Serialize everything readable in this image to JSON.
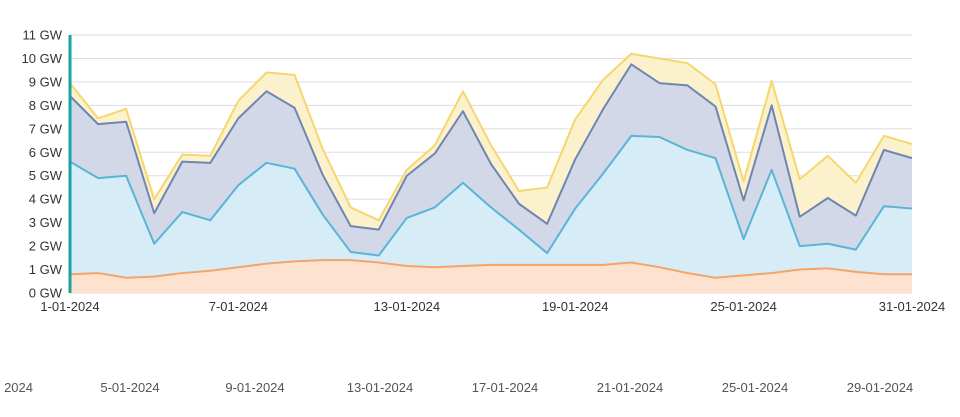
{
  "chart_data": {
    "type": "area",
    "x_labels": [
      "1-01-2024",
      "7-01-2024",
      "13-01-2024",
      "19-01-2024",
      "25-01-2024",
      "31-01-2024"
    ],
    "y_ticks": [
      "0 GW",
      "1 GW",
      "2 GW",
      "3 GW",
      "4 GW",
      "5 GW",
      "6 GW",
      "7 GW",
      "8 GW",
      "9 GW",
      "10 GW",
      "11 GW"
    ],
    "ylim": [
      0,
      11
    ],
    "xlim": [
      1,
      31
    ],
    "grid": true,
    "x": [
      1,
      2,
      3,
      4,
      5,
      6,
      7,
      8,
      9,
      10,
      11,
      12,
      13,
      14,
      15,
      16,
      17,
      18,
      19,
      20,
      21,
      22,
      23,
      24,
      25,
      26,
      27,
      28,
      29,
      30,
      31
    ],
    "series": [
      {
        "color": "#f4a46a",
        "fill": "#fde3cf",
        "values": [
          0.8,
          0.85,
          0.65,
          0.7,
          0.85,
          0.95,
          1.1,
          1.25,
          1.35,
          1.4,
          1.4,
          1.3,
          1.15,
          1.1,
          1.15,
          1.2,
          1.2,
          1.2,
          1.2,
          1.2,
          1.3,
          1.1,
          0.85,
          0.65,
          0.75,
          0.85,
          1.0,
          1.05,
          0.9,
          0.8,
          0.8
        ]
      },
      {
        "color": "#5ab4d6",
        "fill": "#d6ecf6",
        "values": [
          5.6,
          4.9,
          5.0,
          2.1,
          3.45,
          3.1,
          4.6,
          5.55,
          5.3,
          3.35,
          1.75,
          1.6,
          3.2,
          3.65,
          4.7,
          3.65,
          2.7,
          1.7,
          3.6,
          5.1,
          6.7,
          6.65,
          6.1,
          5.75,
          2.3,
          5.25,
          2.0,
          2.1,
          1.85,
          3.7,
          3.6
        ]
      },
      {
        "color": "#6f86b0",
        "fill": "#d3d8e8",
        "values": [
          8.4,
          7.2,
          7.3,
          3.4,
          5.6,
          5.55,
          7.45,
          8.6,
          7.9,
          5.05,
          2.85,
          2.7,
          5.0,
          5.95,
          7.75,
          5.5,
          3.8,
          2.95,
          5.7,
          7.85,
          9.75,
          8.95,
          8.85,
          7.95,
          3.95,
          8.0,
          3.25,
          4.05,
          3.3,
          6.1,
          5.75
        ]
      },
      {
        "color": "#f5d76e",
        "fill": "#fbf1cc",
        "values": [
          8.95,
          7.45,
          7.85,
          4.0,
          5.9,
          5.85,
          8.2,
          9.4,
          9.3,
          6.15,
          3.65,
          3.1,
          5.25,
          6.3,
          8.6,
          6.3,
          4.35,
          4.5,
          7.4,
          9.1,
          10.2,
          10.0,
          9.8,
          8.9,
          4.75,
          9.05,
          4.85,
          5.85,
          4.7,
          6.7,
          6.35
        ]
      }
    ]
  },
  "navigator": {
    "labels": [
      "2024",
      "5-01-2024",
      "9-01-2024",
      "13-01-2024",
      "17-01-2024",
      "21-01-2024",
      "25-01-2024",
      "29-01-2024"
    ]
  },
  "colors": {
    "grid": "#dddddd",
    "axis": "#1aa3a3",
    "text": "#333333"
  }
}
